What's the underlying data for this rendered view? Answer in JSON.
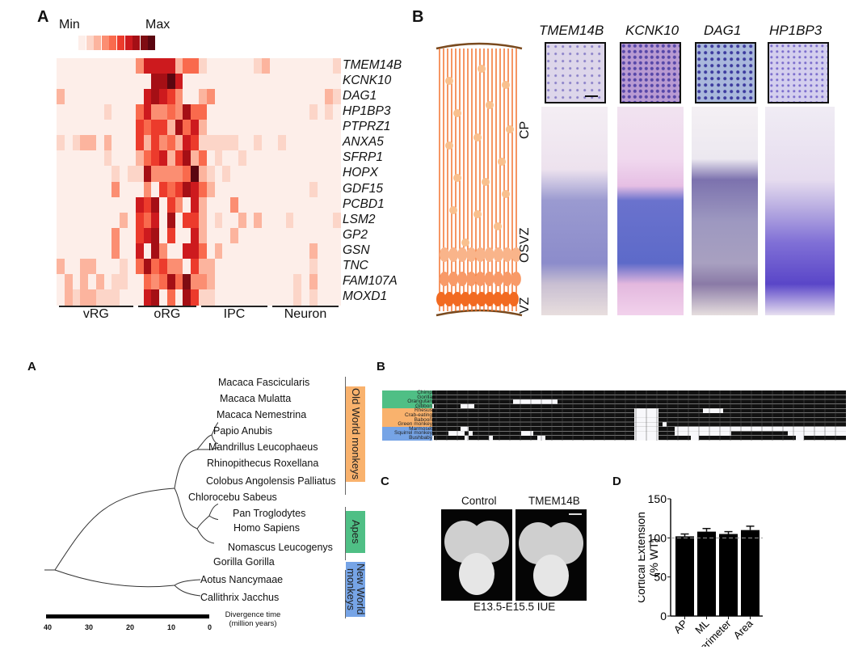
{
  "panels": {
    "top_A": {
      "letter": "A",
      "scale_min": "Min",
      "scale_max": "Max",
      "scale_colors": [
        "#fdeee9",
        "#fcd5c8",
        "#fcb49e",
        "#fb8e72",
        "#f96a4d",
        "#ec3b2c",
        "#cd1a1e",
        "#a50f15",
        "#7f0c12",
        "#5a0610"
      ],
      "genes": [
        "TMEM14B",
        "KCNK10",
        "DAG1",
        "HP1BP3",
        "PTPRZ1",
        "ANXA5",
        "SFRP1",
        "HOPX",
        "GDF15",
        "PCBD1",
        "LSM2",
        "GP2",
        "GSN",
        "TNC",
        "FAM107A",
        "MOXD1"
      ],
      "groups": [
        {
          "label": "vRG",
          "from": 0,
          "to": 9
        },
        {
          "label": "oRG",
          "from": 10,
          "to": 17
        },
        {
          "label": "IPC",
          "from": 18,
          "to": 26
        },
        {
          "label": "Neuron",
          "from": 27,
          "to": 35
        }
      ]
    },
    "top_B": {
      "letter": "B",
      "genes": [
        "TMEM14B",
        "KCNK10",
        "DAG1",
        "HP1BP3"
      ],
      "zones": [
        "CP",
        "OSVZ",
        "VZ"
      ]
    },
    "bottom_A": {
      "letter": "A",
      "species": [
        "Macaca Fascicularis",
        "Macaca Mulatta",
        "Macaca Nemestrina",
        "Papio Anubis",
        "Mandrillus Leucophaeus",
        "Rhinopithecus Roxellana",
        "Colobus Angolensis Palliatus",
        "Chlorocebu Sabeus",
        "Pan Troglodytes",
        "Homo Sapiens",
        "Nomascus Leucogenys",
        "Gorilla Gorilla",
        "Aotus Nancymaae",
        "Callithrix Jacchus"
      ],
      "clades": [
        {
          "label": "Old World monkeys",
          "color": "#f9b26d"
        },
        {
          "label": "Apes",
          "color": "#4fbf85"
        },
        {
          "label": "New World monkeys",
          "color": "#76a4e6"
        }
      ],
      "axis_ticks": [
        "40",
        "30",
        "20",
        "10",
        "0"
      ],
      "axis_title_line1": "Divergence time",
      "axis_title_line2": "(million years)"
    },
    "bottom_B": {
      "letter": "B",
      "species": [
        {
          "name": "Chimp",
          "group": 0
        },
        {
          "name": "Gorilla",
          "group": 0
        },
        {
          "name": "Orangutan",
          "group": 0
        },
        {
          "name": "Gibbon",
          "group": 0
        },
        {
          "name": "Rhesus",
          "group": 1
        },
        {
          "name": "Crab-eating macaque",
          "group": 1
        },
        {
          "name": "Baboon",
          "group": 1
        },
        {
          "name": "Green monkey",
          "group": 1
        },
        {
          "name": "Marmoset",
          "group": 2
        },
        {
          "name": "Squirrel monkey",
          "group": 2
        },
        {
          "name": "Bushbaby",
          "group": 2
        }
      ],
      "group_colors": [
        "#4fbf85",
        "#f9b26d",
        "#76a4e6"
      ]
    },
    "bottom_C": {
      "letter": "C",
      "labels": [
        "Control",
        "TMEM14B"
      ],
      "caption": "E13.5-E15.5 IUE"
    },
    "bottom_D": {
      "letter": "D"
    }
  },
  "chart_data": [
    {
      "type": "heatmap",
      "title": "",
      "rows": [
        "TMEM14B",
        "KCNK10",
        "DAG1",
        "HP1BP3",
        "PTPRZ1",
        "ANXA5",
        "SFRP1",
        "HOPX",
        "GDF15",
        "PCBD1",
        "LSM2",
        "GP2",
        "GSN",
        "TNC",
        "FAM107A",
        "MOXD1"
      ],
      "column_groups": [
        "vRG",
        "oRG",
        "IPC",
        "Neuron"
      ],
      "scale": [
        "Min",
        "Max"
      ],
      "levels": 10,
      "values": [
        [
          0,
          0,
          0,
          0,
          0,
          0,
          0,
          0,
          0,
          0,
          3,
          6,
          6,
          6,
          6,
          2,
          4,
          4,
          1,
          0,
          0,
          0,
          0,
          0,
          0,
          1,
          2,
          0,
          0,
          0,
          0,
          0,
          0,
          0,
          0,
          1
        ],
        [
          0,
          0,
          0,
          0,
          0,
          0,
          0,
          0,
          0,
          0,
          0,
          0,
          7,
          7,
          9,
          6,
          0,
          0,
          0,
          0,
          0,
          0,
          0,
          0,
          0,
          0,
          0,
          0,
          0,
          0,
          0,
          0,
          0,
          0,
          0,
          0
        ],
        [
          2,
          0,
          0,
          0,
          0,
          0,
          0,
          0,
          0,
          0,
          0,
          6,
          7,
          6,
          5,
          3,
          0,
          0,
          2,
          3,
          0,
          0,
          0,
          0,
          0,
          0,
          0,
          0,
          0,
          0,
          0,
          0,
          0,
          0,
          2,
          1
        ],
        [
          0,
          0,
          0,
          0,
          0,
          0,
          1,
          0,
          0,
          0,
          4,
          6,
          3,
          3,
          4,
          3,
          7,
          4,
          4,
          0,
          0,
          0,
          0,
          0,
          0,
          0,
          0,
          0,
          0,
          0,
          0,
          0,
          1,
          0,
          1,
          0
        ],
        [
          0,
          0,
          0,
          0,
          0,
          0,
          0,
          0,
          0,
          0,
          5,
          4,
          5,
          5,
          2,
          7,
          4,
          6,
          2,
          0,
          0,
          0,
          0,
          0,
          0,
          0,
          0,
          0,
          0,
          0,
          0,
          0,
          0,
          0,
          0,
          0
        ],
        [
          1,
          0,
          1,
          2,
          2,
          0,
          2,
          0,
          0,
          0,
          5,
          2,
          5,
          3,
          4,
          2,
          6,
          5,
          1,
          1,
          1,
          1,
          1,
          0,
          0,
          1,
          0,
          0,
          1,
          0,
          0,
          0,
          0,
          0,
          0,
          0
        ],
        [
          0,
          0,
          0,
          0,
          0,
          0,
          1,
          0,
          0,
          0,
          2,
          4,
          5,
          6,
          2,
          5,
          7,
          2,
          4,
          0,
          1,
          0,
          0,
          1,
          0,
          0,
          0,
          0,
          0,
          0,
          0,
          0,
          0,
          0,
          0,
          0
        ],
        [
          0,
          0,
          0,
          0,
          0,
          0,
          0,
          1,
          0,
          1,
          1,
          7,
          3,
          3,
          3,
          3,
          4,
          9,
          2,
          1,
          0,
          1,
          0,
          0,
          0,
          0,
          0,
          0,
          0,
          0,
          0,
          0,
          0,
          0,
          0,
          0
        ],
        [
          0,
          0,
          0,
          0,
          0,
          0,
          0,
          3,
          0,
          0,
          0,
          3,
          0,
          5,
          4,
          5,
          7,
          6,
          4,
          2,
          0,
          0,
          0,
          0,
          0,
          0,
          0,
          0,
          0,
          0,
          0,
          0,
          1,
          0,
          0,
          0
        ],
        [
          0,
          0,
          0,
          0,
          0,
          0,
          0,
          0,
          0,
          0,
          6,
          5,
          7,
          0,
          5,
          3,
          0,
          6,
          2,
          0,
          0,
          0,
          3,
          0,
          0,
          0,
          0,
          0,
          0,
          0,
          0,
          0,
          0,
          0,
          0,
          0
        ],
        [
          0,
          0,
          0,
          0,
          0,
          0,
          0,
          0,
          2,
          0,
          5,
          4,
          6,
          0,
          7,
          0,
          5,
          5,
          2,
          0,
          1,
          0,
          0,
          2,
          0,
          2,
          0,
          0,
          0,
          1,
          0,
          0,
          0,
          0,
          0,
          1
        ],
        [
          0,
          0,
          0,
          0,
          0,
          0,
          0,
          3,
          0,
          0,
          5,
          6,
          7,
          0,
          5,
          0,
          0,
          6,
          2,
          0,
          0,
          0,
          2,
          0,
          0,
          0,
          0,
          0,
          0,
          0,
          0,
          0,
          0,
          0,
          0,
          0
        ],
        [
          0,
          0,
          0,
          0,
          0,
          0,
          0,
          3,
          0,
          0,
          6,
          0,
          7,
          3,
          0,
          0,
          6,
          6,
          4,
          0,
          2,
          0,
          0,
          0,
          0,
          0,
          0,
          0,
          0,
          0,
          0,
          0,
          2,
          0,
          0,
          0
        ],
        [
          2,
          0,
          0,
          2,
          2,
          0,
          0,
          0,
          1,
          0,
          4,
          7,
          4,
          5,
          3,
          3,
          0,
          5,
          2,
          2,
          0,
          0,
          0,
          0,
          0,
          0,
          0,
          0,
          0,
          0,
          0,
          0,
          1,
          0,
          0,
          0
        ],
        [
          0,
          2,
          0,
          2,
          0,
          2,
          0,
          1,
          1,
          0,
          0,
          4,
          3,
          4,
          7,
          4,
          8,
          3,
          3,
          2,
          0,
          0,
          0,
          0,
          0,
          0,
          0,
          0,
          0,
          0,
          1,
          0,
          2,
          0,
          0,
          0
        ],
        [
          0,
          2,
          1,
          2,
          2,
          1,
          1,
          1,
          0,
          0,
          0,
          6,
          7,
          0,
          4,
          0,
          7,
          5,
          1,
          1,
          0,
          0,
          0,
          0,
          0,
          0,
          0,
          0,
          0,
          0,
          1,
          0,
          1,
          0,
          0,
          0
        ]
      ]
    },
    {
      "type": "bar",
      "title": "",
      "categories": [
        "AP",
        "ML",
        "Perimeter",
        "Area"
      ],
      "values": [
        102,
        108,
        105,
        110
      ],
      "errors": [
        3,
        4,
        3,
        5
      ],
      "reference_line": 100,
      "xlabel": "",
      "ylabel": "Cortical Extension (% WT)",
      "ylim": [
        0,
        150
      ],
      "yticks": [
        "0",
        "50",
        "100",
        "150"
      ],
      "grid": false,
      "bar_color": "#000000"
    }
  ]
}
